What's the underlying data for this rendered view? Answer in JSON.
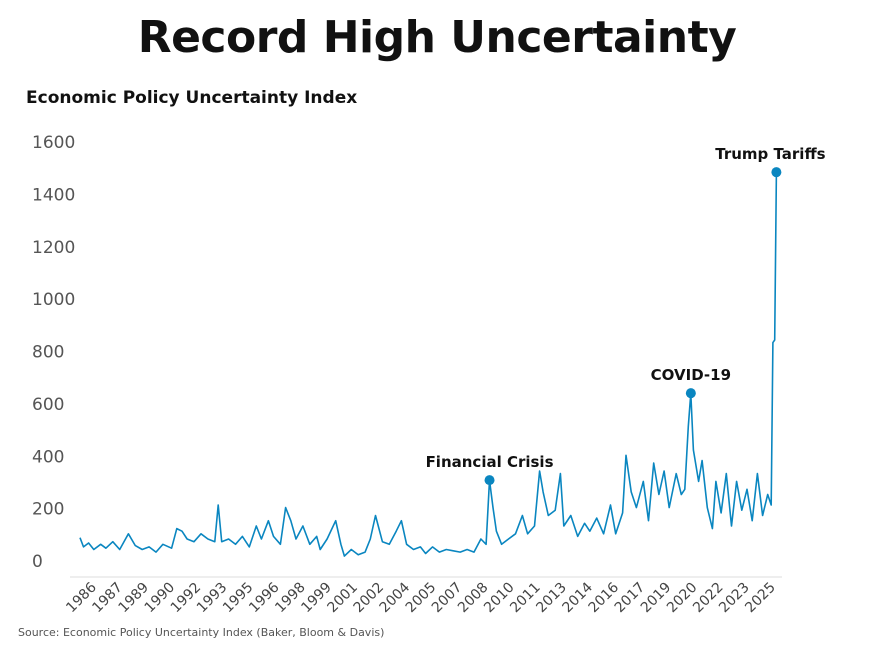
{
  "chart_data": {
    "type": "line",
    "title": "Record High Uncertainty",
    "ylabel": "Economic Policy Uncertainty Index",
    "xlabel": "",
    "source": "Source: Economic Policy Uncertainty Index (Baker, Bloom & Davis)",
    "ylim": [
      0,
      1600
    ],
    "yticks": [
      0,
      200,
      400,
      600,
      800,
      1000,
      1200,
      1400,
      1600
    ],
    "xtick_labels": [
      "1986",
      "1987",
      "1989",
      "1990",
      "1992",
      "1993",
      "1995",
      "1996",
      "1998",
      "1999",
      "2001",
      "2002",
      "2004",
      "2005",
      "2007",
      "2008",
      "2010",
      "2011",
      "2013",
      "2014",
      "2016",
      "2017",
      "2019",
      "2020",
      "2022",
      "2023",
      "2025"
    ],
    "grid": false,
    "line_color": "#0a86c0",
    "series": [
      {
        "name": "Economic Policy Uncertainty Index",
        "points": [
          [
            1985.0,
            85
          ],
          [
            1985.2,
            50
          ],
          [
            1985.5,
            65
          ],
          [
            1985.8,
            40
          ],
          [
            1986.2,
            60
          ],
          [
            1986.5,
            45
          ],
          [
            1986.9,
            70
          ],
          [
            1987.3,
            40
          ],
          [
            1987.8,
            100
          ],
          [
            1988.2,
            55
          ],
          [
            1988.6,
            40
          ],
          [
            1989.0,
            50
          ],
          [
            1989.4,
            30
          ],
          [
            1989.8,
            60
          ],
          [
            1990.3,
            45
          ],
          [
            1990.6,
            120
          ],
          [
            1990.9,
            110
          ],
          [
            1991.2,
            80
          ],
          [
            1991.6,
            70
          ],
          [
            1992.0,
            100
          ],
          [
            1992.4,
            80
          ],
          [
            1992.8,
            70
          ],
          [
            1993.0,
            210
          ],
          [
            1993.2,
            70
          ],
          [
            1993.6,
            80
          ],
          [
            1994.0,
            60
          ],
          [
            1994.4,
            90
          ],
          [
            1994.8,
            50
          ],
          [
            1995.2,
            130
          ],
          [
            1995.5,
            80
          ],
          [
            1995.9,
            150
          ],
          [
            1996.2,
            90
          ],
          [
            1996.6,
            60
          ],
          [
            1996.9,
            200
          ],
          [
            1997.2,
            150
          ],
          [
            1997.5,
            80
          ],
          [
            1997.9,
            130
          ],
          [
            1998.3,
            60
          ],
          [
            1998.7,
            90
          ],
          [
            1998.9,
            40
          ],
          [
            1999.3,
            80
          ],
          [
            1999.8,
            150
          ],
          [
            2000.1,
            60
          ],
          [
            2000.3,
            15
          ],
          [
            2000.7,
            40
          ],
          [
            2001.1,
            20
          ],
          [
            2001.5,
            30
          ],
          [
            2001.8,
            80
          ],
          [
            2002.1,
            170
          ],
          [
            2002.5,
            70
          ],
          [
            2002.9,
            60
          ],
          [
            2003.3,
            110
          ],
          [
            2003.6,
            150
          ],
          [
            2003.9,
            60
          ],
          [
            2004.3,
            40
          ],
          [
            2004.7,
            50
          ],
          [
            2005.0,
            25
          ],
          [
            2005.4,
            50
          ],
          [
            2005.8,
            30
          ],
          [
            2006.2,
            40
          ],
          [
            2006.6,
            35
          ],
          [
            2007.0,
            30
          ],
          [
            2007.4,
            40
          ],
          [
            2007.8,
            30
          ],
          [
            2008.2,
            80
          ],
          [
            2008.5,
            60
          ],
          [
            2008.7,
            305
          ],
          [
            2008.9,
            200
          ],
          [
            2009.1,
            110
          ],
          [
            2009.4,
            60
          ],
          [
            2009.8,
            80
          ],
          [
            2010.2,
            100
          ],
          [
            2010.6,
            170
          ],
          [
            2010.9,
            100
          ],
          [
            2011.3,
            130
          ],
          [
            2011.6,
            340
          ],
          [
            2011.8,
            260
          ],
          [
            2012.1,
            170
          ],
          [
            2012.5,
            190
          ],
          [
            2012.8,
            330
          ],
          [
            2013.0,
            130
          ],
          [
            2013.4,
            170
          ],
          [
            2013.8,
            90
          ],
          [
            2014.2,
            140
          ],
          [
            2014.5,
            110
          ],
          [
            2014.9,
            160
          ],
          [
            2015.3,
            100
          ],
          [
            2015.7,
            210
          ],
          [
            2016.0,
            100
          ],
          [
            2016.4,
            180
          ],
          [
            2016.6,
            400
          ],
          [
            2016.9,
            260
          ],
          [
            2017.2,
            200
          ],
          [
            2017.6,
            300
          ],
          [
            2017.9,
            150
          ],
          [
            2018.2,
            370
          ],
          [
            2018.5,
            250
          ],
          [
            2018.8,
            340
          ],
          [
            2019.1,
            200
          ],
          [
            2019.5,
            330
          ],
          [
            2019.8,
            250
          ],
          [
            2020.0,
            270
          ],
          [
            2020.2,
            510
          ],
          [
            2020.35,
            637
          ],
          [
            2020.5,
            420
          ],
          [
            2020.8,
            300
          ],
          [
            2021.0,
            380
          ],
          [
            2021.3,
            200
          ],
          [
            2021.6,
            120
          ],
          [
            2021.8,
            300
          ],
          [
            2022.1,
            180
          ],
          [
            2022.4,
            330
          ],
          [
            2022.7,
            130
          ],
          [
            2023.0,
            300
          ],
          [
            2023.3,
            190
          ],
          [
            2023.6,
            270
          ],
          [
            2023.9,
            150
          ],
          [
            2024.2,
            330
          ],
          [
            2024.5,
            170
          ],
          [
            2024.8,
            250
          ],
          [
            2025.0,
            210
          ],
          [
            2025.1,
            830
          ],
          [
            2025.2,
            840
          ],
          [
            2025.3,
            1481
          ]
        ]
      }
    ],
    "annotations": [
      {
        "label": "Financial Crisis",
        "x": 2008.7,
        "y": 305
      },
      {
        "label": "COVID-19",
        "x": 2020.35,
        "y": 637
      },
      {
        "label": "Trump Tariffs",
        "x": 2025.3,
        "y": 1481
      }
    ]
  }
}
